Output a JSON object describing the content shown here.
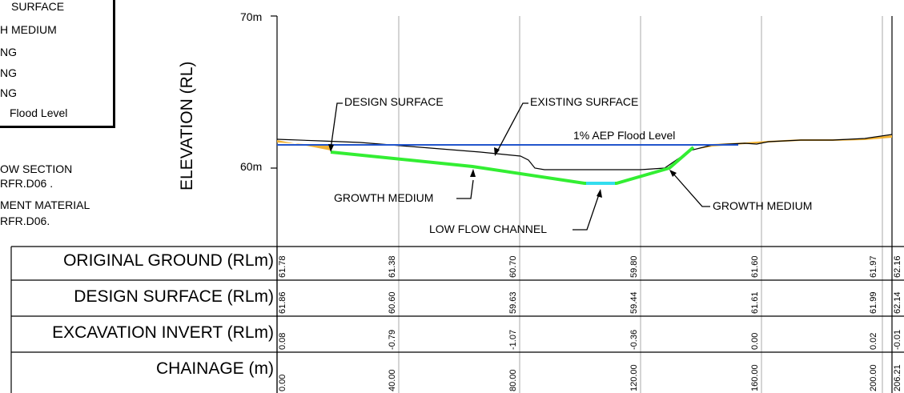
{
  "legend": {
    "lines": [
      "SURFACE",
      "H MEDIUM",
      "NG",
      "NG",
      "NG",
      "Flood Level"
    ]
  },
  "notes": {
    "lines": [
      "OW SECTION",
      "RFR.D06 .",
      "MENT MATERIAL",
      "RFR.D06."
    ]
  },
  "axis": {
    "title": "ELEVATION (RL)",
    "tick_70": "70m",
    "tick_60": "60m"
  },
  "annotations": {
    "design_surface": "DESIGN SURFACE",
    "existing_surface": "EXISTING SURFACE",
    "flood_level": "1% AEP Flood Level",
    "growth_medium_left": "GROWTH MEDIUM",
    "growth_medium_right": "GROWTH MEDIUM",
    "low_flow_channel": "LOW FLOW CHANNEL"
  },
  "colors": {
    "design_surface": "#33ee33",
    "low_flow_channel": "#33ddee",
    "flood_level": "#2255cc",
    "existing_surface": "#000000",
    "existing_fill": "#f2b233",
    "grid": "#aaaaaa"
  },
  "table": {
    "rows": [
      {
        "label": "ORIGINAL GROUND (RLm)",
        "values": [
          "61.78",
          "61.38",
          "60.70",
          "59.80",
          "61.60",
          "61.97",
          "62.16"
        ]
      },
      {
        "label": "DESIGN SURFACE (RLm)",
        "values": [
          "61.86",
          "60.60",
          "59.63",
          "59.44",
          "61.61",
          "61.99",
          "62.14"
        ]
      },
      {
        "label": "EXCAVATION INVERT (RLm)",
        "values": [
          "0.08",
          "-0.79",
          "-1.07",
          "-0.36",
          "0.00",
          "0.02",
          "-0.01"
        ]
      },
      {
        "label": "CHAINAGE (m)",
        "values": [
          "0.00",
          "40.00",
          "80.00",
          "120.00",
          "160.00",
          "200.00",
          "206.21"
        ]
      }
    ]
  }
}
